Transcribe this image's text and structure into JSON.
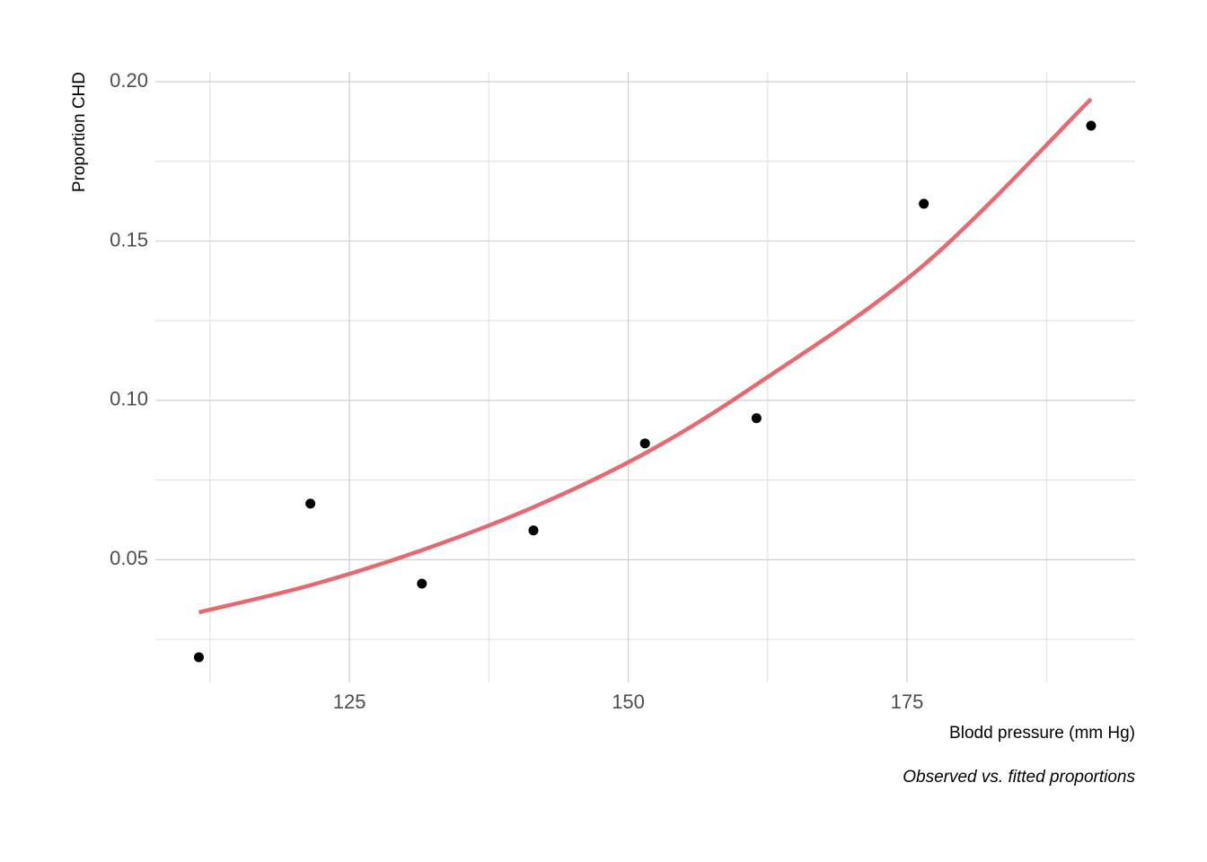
{
  "chart_data": {
    "type": "scatter",
    "y_label": "Proportion CHD",
    "x_label": "Blodd pressure (mm Hg)",
    "caption": "Observed vs. fitted proportions",
    "x": [
      111.5,
      121.5,
      131.5,
      141.5,
      151.5,
      161.5,
      176.5,
      191.5
    ],
    "series": [
      {
        "mark": "point",
        "color": "#000000",
        "values": [
          0.0194,
          0.0676,
          0.0425,
          0.0592,
          0.0865,
          0.0944,
          0.1617,
          0.1862
        ]
      },
      {
        "mark": "line",
        "color": "#e7696f",
        "values": [
          0.0335,
          0.042,
          0.053,
          0.0665,
          0.0834,
          0.105,
          0.1425,
          0.1946
        ]
      }
    ],
    "xlim": [
      107.6,
      195.45
    ],
    "ylim": [
      0.0115,
      0.2031
    ],
    "xticks": [
      125,
      150,
      175
    ],
    "yticks": [
      {
        "value": 0.05,
        "label": "0.05"
      },
      {
        "value": 0.1,
        "label": "0.10"
      },
      {
        "value": 0.15,
        "label": "0.15"
      },
      {
        "value": 0.2,
        "label": "0.20"
      }
    ],
    "x_minor_ticks": [
      112.5,
      137.5,
      162.5,
      187.5
    ],
    "y_minor_ticks": [
      0.025,
      0.075,
      0.125,
      0.175
    ],
    "grid": true
  }
}
